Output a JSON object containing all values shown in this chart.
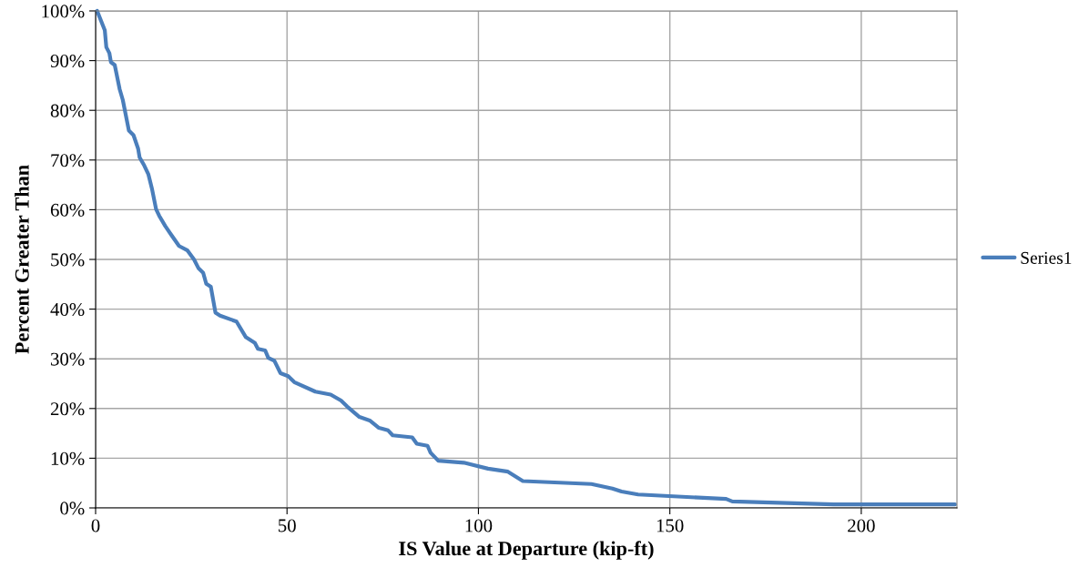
{
  "chart_data": {
    "type": "line",
    "xlabel": "IS Value at Departure (kip-ft)",
    "ylabel": "Percent Greater Than",
    "xlim": [
      0,
      225
    ],
    "xticks": [
      0,
      50,
      100,
      150,
      200
    ],
    "ylim": [
      0,
      100
    ],
    "yticks": [
      {
        "value": 0,
        "label": "0%"
      },
      {
        "value": 10,
        "label": "10%"
      },
      {
        "value": 20,
        "label": "20%"
      },
      {
        "value": 30,
        "label": "30%"
      },
      {
        "value": 40,
        "label": "40%"
      },
      {
        "value": 50,
        "label": "50%"
      },
      {
        "value": 60,
        "label": "60%"
      },
      {
        "value": 70,
        "label": "70%"
      },
      {
        "value": 80,
        "label": "80%"
      },
      {
        "value": 90,
        "label": "90%"
      },
      {
        "value": 100,
        "label": "100%"
      }
    ],
    "grid": true,
    "legend": "right",
    "marker": "none",
    "line_style": "solid",
    "series": [
      {
        "name": "Series1",
        "color": "#4a7ebb",
        "x": [
          0.4,
          2.4,
          2.8,
          3.6,
          4.0,
          5.0,
          6.3,
          7.1,
          8.7,
          9.9,
          11.1,
          11.5,
          12.7,
          13.8,
          14.7,
          15.8,
          16.6,
          18.2,
          19.8,
          21.8,
          24.0,
          25.7,
          26.9,
          28.1,
          28.9,
          30.1,
          31.3,
          32.5,
          36.8,
          39.2,
          41.6,
          42.4,
          44.3,
          45.1,
          46.7,
          48.3,
          50.3,
          51.9,
          57.4,
          61.4,
          64.1,
          65.7,
          68.9,
          71.6,
          74.0,
          76.4,
          77.6,
          82.7,
          83.9,
          86.7,
          87.5,
          89.5,
          96.2,
          102.5,
          107.7,
          111.6,
          129.5,
          135.0,
          137.4,
          141.7,
          164.7,
          166.3,
          192.8,
          221.7,
          224.5
        ],
        "values": [
          100,
          96.1,
          92.7,
          91.5,
          89.7,
          89.1,
          84.2,
          82.1,
          75.9,
          75.0,
          72.3,
          70.5,
          68.9,
          67.1,
          64.3,
          60.1,
          58.8,
          56.7,
          54.9,
          52.7,
          51.8,
          50.0,
          48.2,
          47.3,
          45.1,
          44.5,
          39.3,
          38.7,
          37.5,
          34.4,
          33.2,
          32.0,
          31.7,
          30.2,
          29.6,
          27.1,
          26.5,
          25.3,
          23.4,
          22.8,
          21.6,
          20.4,
          18.3,
          17.6,
          16.1,
          15.6,
          14.6,
          14.2,
          12.9,
          12.5,
          11.1,
          9.5,
          9.1,
          7.9,
          7.3,
          5.4,
          4.8,
          3.9,
          3.3,
          2.7,
          1.8,
          1.3,
          0.7,
          0.7,
          0.7
        ]
      }
    ]
  }
}
